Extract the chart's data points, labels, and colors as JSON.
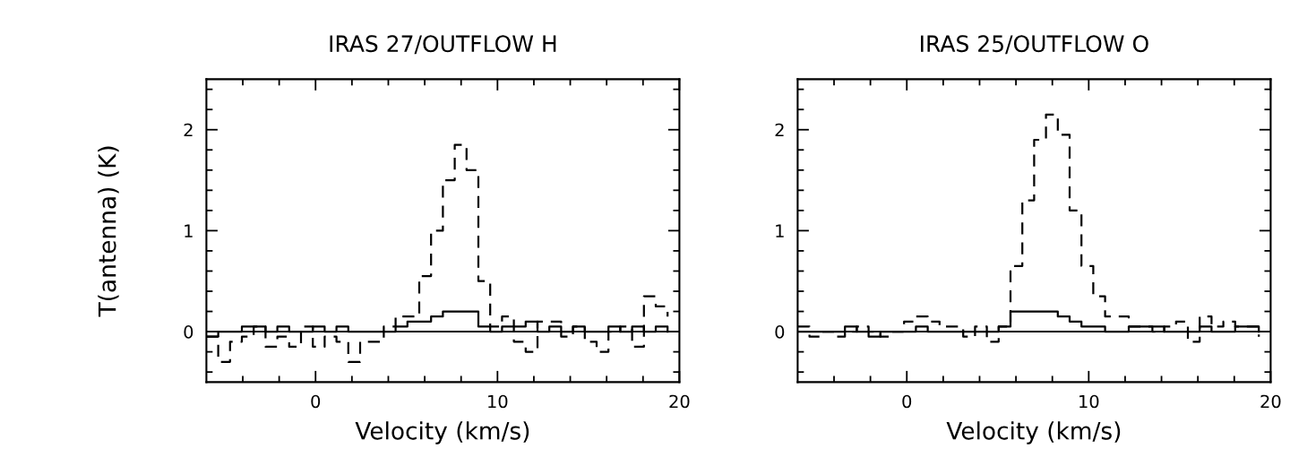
{
  "chart_data": [
    {
      "type": "step",
      "title": "IRAS 27/OUTFLOW H",
      "xlabel": "Velocity (km/s)",
      "ylabel": "T(antenna) (K)",
      "x": [
        -6.0,
        -5.35,
        -4.7,
        -4.05,
        -3.4,
        -2.75,
        -2.1,
        -1.45,
        -0.8,
        -0.15,
        0.5,
        1.15,
        1.8,
        2.45,
        3.1,
        3.75,
        4.4,
        5.05,
        5.7,
        6.35,
        7.0,
        7.65,
        8.3,
        8.95,
        9.6,
        10.25,
        10.9,
        11.55,
        12.2,
        12.85,
        13.5,
        14.15,
        14.8,
        15.45,
        16.1,
        16.75,
        17.4,
        18.05,
        18.7,
        19.35
      ],
      "series": [
        {
          "color": "#000000",
          "line_style": "dashed",
          "values": [
            -0.05,
            -0.3,
            -0.1,
            -0.05,
            0.05,
            -0.15,
            -0.05,
            -0.15,
            0.05,
            -0.15,
            -0.05,
            -0.1,
            -0.3,
            -0.1,
            -0.1,
            0.05,
            0.15,
            0.15,
            0.55,
            1.0,
            1.5,
            1.85,
            1.6,
            0.5,
            0.05,
            0.15,
            -0.1,
            -0.2,
            0.1,
            0.1,
            -0.05,
            0.05,
            -0.1,
            -0.2,
            0.0,
            0.05,
            -0.15,
            0.35,
            0.25,
            0.15
          ]
        },
        {
          "color": "#000000",
          "line_style": "solid",
          "values": [
            -0.05,
            0.0,
            0.0,
            0.05,
            0.05,
            0.0,
            0.05,
            0.0,
            0.0,
            0.05,
            0.0,
            0.05,
            0.0,
            0.0,
            0.0,
            0.0,
            0.05,
            0.1,
            0.1,
            0.15,
            0.2,
            0.2,
            0.2,
            0.05,
            0.0,
            0.05,
            0.05,
            0.1,
            0.0,
            0.05,
            0.0,
            0.05,
            0.0,
            0.0,
            0.05,
            0.0,
            0.05,
            0.0,
            0.05,
            0.0
          ]
        }
      ],
      "xlim": [
        -6,
        20
      ],
      "ylim": [
        -0.5,
        2.5
      ],
      "xticks": [
        {
          "value": -4,
          "label": null
        },
        {
          "value": -2,
          "label": null
        },
        0,
        {
          "value": 2,
          "label": null
        },
        {
          "value": 4,
          "label": null
        },
        {
          "value": 6,
          "label": null
        },
        {
          "value": 8,
          "label": null
        },
        10,
        {
          "value": 12,
          "label": null
        },
        {
          "value": 14,
          "label": null
        },
        {
          "value": 16,
          "label": null
        },
        {
          "value": 18,
          "label": null
        },
        20
      ],
      "yticks": [
        {
          "value": -0.4,
          "label": null
        },
        {
          "value": -0.2,
          "label": null
        },
        0,
        {
          "value": 0.2,
          "label": null
        },
        {
          "value": 0.4,
          "label": null
        },
        {
          "value": 0.6,
          "label": null
        },
        {
          "value": 0.8,
          "label": null
        },
        1,
        {
          "value": 1.2,
          "label": null
        },
        {
          "value": 1.4,
          "label": null
        },
        {
          "value": 1.6,
          "label": null
        },
        {
          "value": 1.8,
          "label": null
        },
        2,
        {
          "value": 2.2,
          "label": null
        },
        {
          "value": 2.4,
          "label": null
        }
      ],
      "ref_lines": [
        {
          "axis": "y",
          "value": 0,
          "color": "#000000",
          "line_style": "solid"
        }
      ]
    },
    {
      "type": "step",
      "title": "IRAS 25/OUTFLOW O",
      "xlabel": "Velocity (km/s)",
      "x": [
        -6.0,
        -5.35,
        -4.7,
        -4.05,
        -3.4,
        -2.75,
        -2.1,
        -1.45,
        -0.8,
        -0.15,
        0.5,
        1.15,
        1.8,
        2.45,
        3.1,
        3.75,
        4.4,
        5.05,
        5.7,
        6.35,
        7.0,
        7.65,
        8.3,
        8.95,
        9.6,
        10.25,
        10.9,
        11.55,
        12.2,
        12.85,
        13.5,
        14.15,
        14.8,
        15.45,
        16.1,
        16.75,
        17.4,
        18.05,
        18.7,
        19.35
      ],
      "series": [
        {
          "color": "#000000",
          "line_style": "dashed",
          "values": [
            0.05,
            -0.05,
            0.0,
            -0.05,
            0.0,
            0.05,
            0.0,
            -0.05,
            0.0,
            0.1,
            0.15,
            0.1,
            0.05,
            0.05,
            -0.05,
            0.05,
            -0.1,
            0.05,
            0.65,
            1.3,
            1.9,
            2.15,
            1.95,
            1.2,
            0.65,
            0.35,
            0.15,
            0.15,
            0.05,
            0.05,
            0.0,
            0.05,
            0.1,
            -0.1,
            0.15,
            0.05,
            0.1,
            0.05,
            0.05,
            -0.05
          ]
        },
        {
          "color": "#000000",
          "line_style": "solid",
          "values": [
            0.0,
            0.0,
            0.0,
            0.0,
            0.05,
            0.0,
            -0.05,
            0.0,
            0.0,
            0.0,
            0.05,
            0.0,
            0.0,
            0.0,
            0.0,
            0.0,
            0.0,
            0.05,
            0.2,
            0.2,
            0.2,
            0.2,
            0.15,
            0.1,
            0.05,
            0.05,
            0.0,
            0.0,
            0.05,
            0.05,
            0.05,
            0.0,
            0.0,
            0.0,
            0.05,
            0.0,
            0.0,
            0.05,
            0.05,
            0.0
          ]
        }
      ],
      "xlim": [
        -6,
        20
      ],
      "ylim": [
        -0.5,
        2.5
      ],
      "xticks": [
        {
          "value": -4,
          "label": null
        },
        {
          "value": -2,
          "label": null
        },
        0,
        {
          "value": 2,
          "label": null
        },
        {
          "value": 4,
          "label": null
        },
        {
          "value": 6,
          "label": null
        },
        {
          "value": 8,
          "label": null
        },
        10,
        {
          "value": 12,
          "label": null
        },
        {
          "value": 14,
          "label": null
        },
        {
          "value": 16,
          "label": null
        },
        {
          "value": 18,
          "label": null
        },
        20
      ],
      "yticks": [
        {
          "value": -0.4,
          "label": null
        },
        {
          "value": -0.2,
          "label": null
        },
        0,
        {
          "value": 0.2,
          "label": null
        },
        {
          "value": 0.4,
          "label": null
        },
        {
          "value": 0.6,
          "label": null
        },
        {
          "value": 0.8,
          "label": null
        },
        1,
        {
          "value": 1.2,
          "label": null
        },
        {
          "value": 1.4,
          "label": null
        },
        {
          "value": 1.6,
          "label": null
        },
        {
          "value": 1.8,
          "label": null
        },
        2,
        {
          "value": 2.2,
          "label": null
        },
        {
          "value": 2.4,
          "label": null
        }
      ],
      "ref_lines": [
        {
          "axis": "y",
          "value": 0,
          "color": "#000000",
          "line_style": "solid"
        }
      ]
    }
  ]
}
